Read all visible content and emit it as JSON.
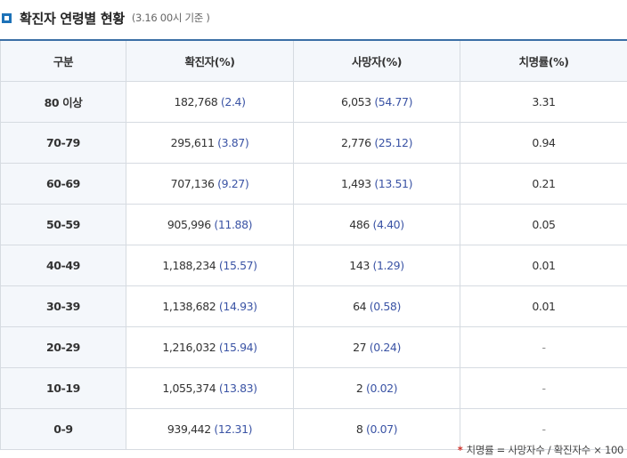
{
  "header": {
    "title": "확진자 연령별 현황",
    "subtitle": "(3.16 00시 기준 )"
  },
  "table": {
    "headers": [
      "구분",
      "확진자(%)",
      "사망자(%)",
      "치명률(%)"
    ],
    "rows": [
      {
        "age": "80 이상",
        "conf": "182,768",
        "conf_pct": "(2.4)",
        "death": "6,053",
        "death_pct": "(54.77)",
        "fatality": "3.31"
      },
      {
        "age": "70-79",
        "conf": "295,611",
        "conf_pct": "(3.87)",
        "death": "2,776",
        "death_pct": "(25.12)",
        "fatality": "0.94"
      },
      {
        "age": "60-69",
        "conf": "707,136",
        "conf_pct": "(9.27)",
        "death": "1,493",
        "death_pct": "(13.51)",
        "fatality": "0.21"
      },
      {
        "age": "50-59",
        "conf": "905,996",
        "conf_pct": "(11.88)",
        "death": "486",
        "death_pct": "(4.40)",
        "fatality": "0.05"
      },
      {
        "age": "40-49",
        "conf": "1,188,234",
        "conf_pct": "(15.57)",
        "death": "143",
        "death_pct": "(1.29)",
        "fatality": "0.01"
      },
      {
        "age": "30-39",
        "conf": "1,138,682",
        "conf_pct": "(14.93)",
        "death": "64",
        "death_pct": "(0.58)",
        "fatality": "0.01"
      },
      {
        "age": "20-29",
        "conf": "1,216,032",
        "conf_pct": "(15.94)",
        "death": "27",
        "death_pct": "(0.24)",
        "fatality": "-"
      },
      {
        "age": "10-19",
        "conf": "1,055,374",
        "conf_pct": "(13.83)",
        "death": "2",
        "death_pct": "(0.02)",
        "fatality": "-"
      },
      {
        "age": "0-9",
        "conf": "939,442",
        "conf_pct": "(12.31)",
        "death": "8",
        "death_pct": "(0.07)",
        "fatality": "-"
      }
    ]
  },
  "footnote": {
    "star": "*",
    "text": "치명률 = 사망자수 / 확진자수 × 100"
  }
}
